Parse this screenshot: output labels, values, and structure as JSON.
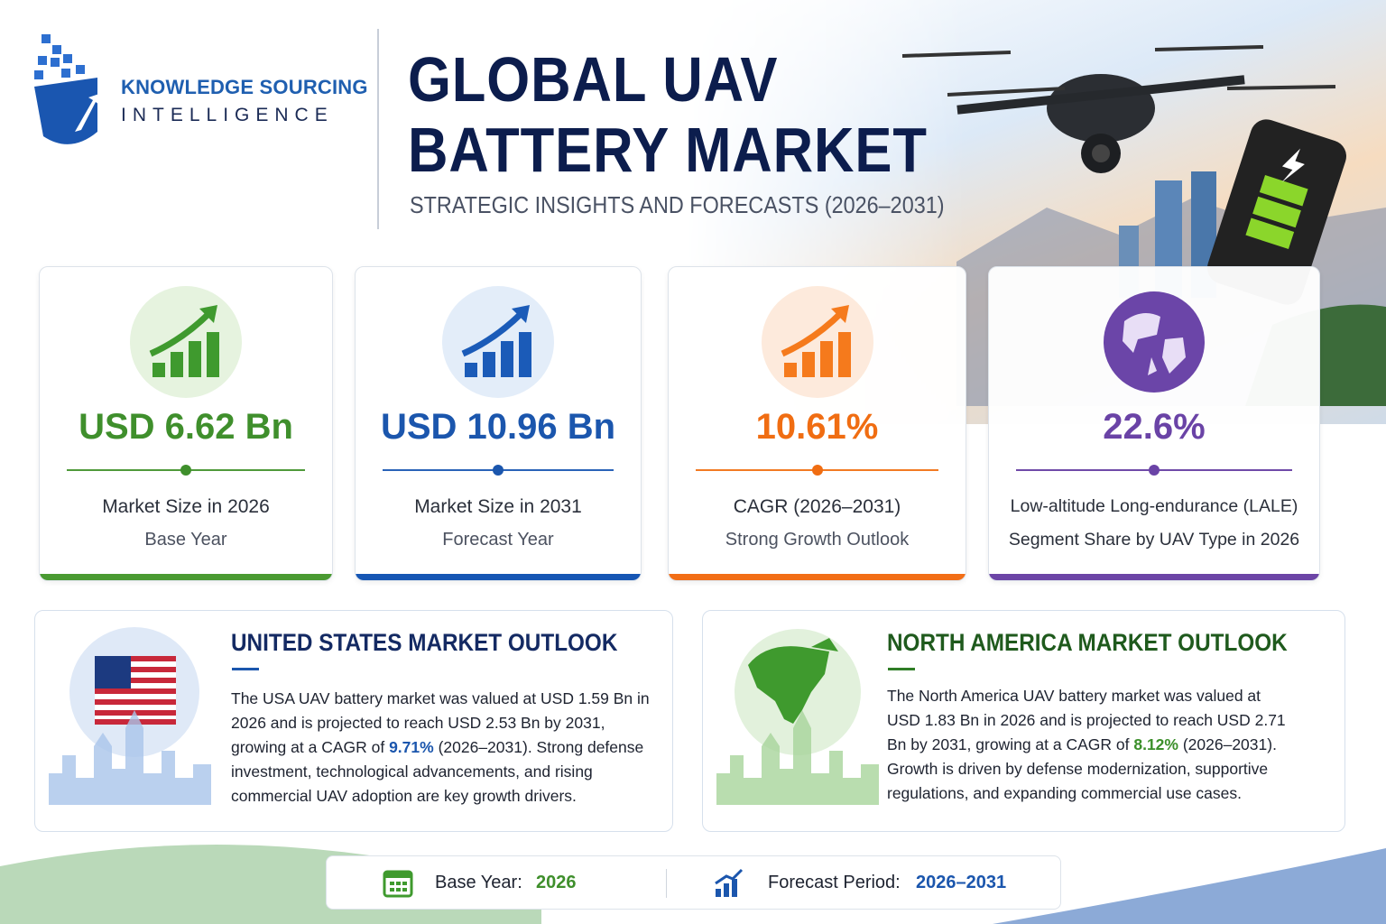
{
  "brand": {
    "name": "KNOWLEDGE SOURCING",
    "tagline": "INTELLIGENCE"
  },
  "header": {
    "title_line1": "GLOBAL UAV",
    "title_line2": "BATTERY MARKET",
    "subtitle": "STRATEGIC INSIGHTS AND FORECASTS (2026–2031)"
  },
  "cards": [
    {
      "value": "USD 6.62 Bn",
      "label": "Market Size in 2026",
      "sublabel": "Base Year"
    },
    {
      "value": "USD 10.96 Bn",
      "label": "Market Size in 2031",
      "sublabel": "Forecast Year"
    },
    {
      "value": "10.61%",
      "label": "CAGR (2026–2031)",
      "sublabel": "Strong Growth Outlook"
    },
    {
      "value": "22.6%",
      "label": "Low-altitude Long-endurance (LALE)",
      "sublabel": "Segment Share by UAV Type in 2026"
    }
  ],
  "outlooks": [
    {
      "title": "UNITED STATES MARKET OUTLOOK",
      "text_before": "The USA UAV battery market was valued at USD 1.59 Bn in 2026 and is projected to reach USD 2.53 Bn by 2031, growing at a CAGR of ",
      "highlight": "9.71%",
      "text_after": " (2026–2031). Strong defense investment, technological advancements, and rising commercial UAV adoption are key growth drivers."
    },
    {
      "title": "NORTH AMERICA MARKET OUTLOOK",
      "text_before": "The North America UAV battery market was valued at USD 1.83 Bn in 2026 and is projected to reach USD 2.71 Bn by 2031, growing at a CAGR of ",
      "highlight": "8.12%",
      "text_after": " (2026–2031). Growth is driven by defense modernization, supportive regulations, and expanding commercial use cases."
    }
  ],
  "footer": {
    "base_label": "Base Year:",
    "base_value": "2026",
    "forecast_label": "Forecast Period:",
    "forecast_value": "2026–2031"
  }
}
